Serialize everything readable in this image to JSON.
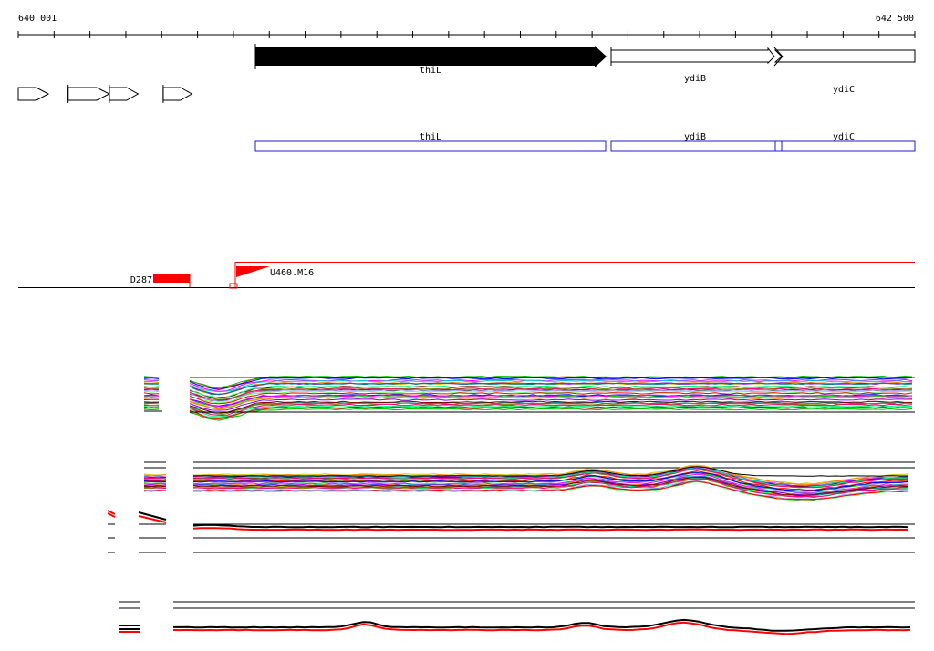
{
  "ruler": {
    "start_label": "640 001",
    "end_label": "642 500",
    "start": 640001,
    "end": 642500
  },
  "colors": {
    "gene_fill": "#000000",
    "outline": "#000000",
    "cds_box": "#1c1ccc",
    "feature_red": "#ff0000",
    "background": "#ffffff"
  },
  "genes": [
    {
      "name": "thiL",
      "start": 640650,
      "end": 641630,
      "strand": "+",
      "filled": true
    },
    {
      "name": "ydiB",
      "start": 641645,
      "end": 642105,
      "strand": "+",
      "filled": false
    },
    {
      "name": "ydiC",
      "start": 642095,
      "end": 642500,
      "strand": "+",
      "filled": false
    }
  ],
  "small_arrows": [
    {
      "start": 640001,
      "end": 640085
    },
    {
      "start": 640140,
      "end": 640255
    },
    {
      "start": 640255,
      "end": 640335
    },
    {
      "start": 640405,
      "end": 640485
    }
  ],
  "cds_boxes": [
    {
      "name": "thiL",
      "start": 640650,
      "end": 641630
    },
    {
      "name": "ydiB",
      "start": 641645,
      "end": 642105
    },
    {
      "name": "ydiC",
      "start": 642095,
      "end": 642500
    }
  ],
  "features": [
    {
      "name": "D287",
      "start": 640380,
      "end": 640480,
      "type": "block"
    },
    {
      "name": "U460.M16",
      "start": 640600,
      "end": 640650,
      "type": "flag"
    }
  ],
  "tracks": {
    "track1_icon": "multicolor-profile-track",
    "track2_icon": "multicolor-profile-track",
    "track3_icon": "red-black-profile-track",
    "track4_icon": "red-black-profile-track"
  }
}
